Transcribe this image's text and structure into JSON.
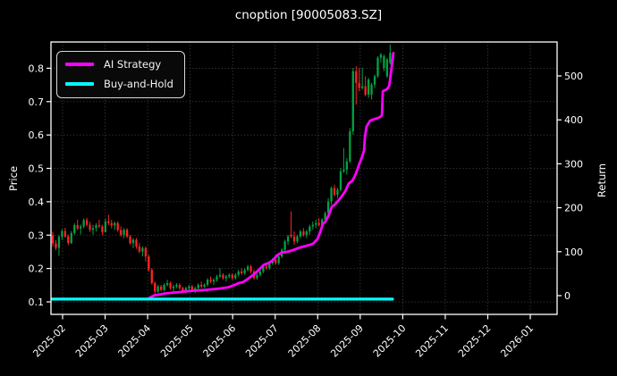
{
  "title": "cnoption [90005083.SZ]",
  "legend": {
    "items": [
      {
        "label": "AI Strategy",
        "color": "#ff00ff"
      },
      {
        "label": "Buy-and-Hold",
        "color": "#00ffff"
      }
    ]
  },
  "axes": {
    "left_label": "Price",
    "right_label": "Return"
  },
  "chart_data": {
    "type": "candlestick",
    "title": "cnoption [90005083.SZ]",
    "background": "#000000",
    "grid": true,
    "legend_position": "upper left",
    "x_axis": {
      "ticks": [
        "2025-02",
        "2025-03",
        "2025-04",
        "2025-05",
        "2025-06",
        "2025-07",
        "2025-08",
        "2025-09",
        "2025-10",
        "2025-11",
        "2025-12",
        "2026-01"
      ],
      "range_months": [
        -0.273,
        11.63
      ]
    },
    "price_axis": {
      "label": "Price",
      "ticks": [
        0.1,
        0.2,
        0.3,
        0.4,
        0.5,
        0.6,
        0.7,
        0.8
      ],
      "range": [
        0.062,
        0.878
      ]
    },
    "return_axis": {
      "label": "Return",
      "ticks": [
        0,
        100,
        200,
        300,
        400,
        500
      ],
      "range": [
        -43,
        577
      ]
    },
    "candles": {
      "up_color": "#00a244",
      "down_color": "#ff2222",
      "start_month": -0.231,
      "month_step": 0.0728,
      "ohlc": [
        [
          0.3,
          0.31,
          0.265,
          0.275
        ],
        [
          0.275,
          0.285,
          0.255,
          0.262
        ],
        [
          0.262,
          0.3,
          0.238,
          0.295
        ],
        [
          0.295,
          0.318,
          0.285,
          0.312
        ],
        [
          0.312,
          0.322,
          0.292,
          0.296
        ],
        [
          0.296,
          0.302,
          0.27,
          0.276
        ],
        [
          0.276,
          0.312,
          0.274,
          0.306
        ],
        [
          0.306,
          0.336,
          0.3,
          0.33
        ],
        [
          0.33,
          0.346,
          0.315,
          0.32
        ],
        [
          0.32,
          0.332,
          0.302,
          0.326
        ],
        [
          0.326,
          0.35,
          0.32,
          0.345
        ],
        [
          0.345,
          0.352,
          0.326,
          0.331
        ],
        [
          0.331,
          0.34,
          0.31,
          0.316
        ],
        [
          0.316,
          0.331,
          0.301,
          0.321
        ],
        [
          0.321,
          0.336,
          0.311,
          0.33
        ],
        [
          0.33,
          0.346,
          0.321,
          0.326
        ],
        [
          0.326,
          0.331,
          0.3,
          0.309
        ],
        [
          0.309,
          0.35,
          0.308,
          0.341
        ],
        [
          0.341,
          0.361,
          0.33,
          0.336
        ],
        [
          0.336,
          0.346,
          0.32,
          0.329
        ],
        [
          0.329,
          0.341,
          0.316,
          0.336
        ],
        [
          0.336,
          0.341,
          0.31,
          0.315
        ],
        [
          0.315,
          0.326,
          0.295,
          0.301
        ],
        [
          0.301,
          0.321,
          0.291,
          0.316
        ],
        [
          0.316,
          0.321,
          0.291,
          0.296
        ],
        [
          0.296,
          0.301,
          0.271,
          0.276
        ],
        [
          0.276,
          0.291,
          0.261,
          0.286
        ],
        [
          0.286,
          0.291,
          0.259,
          0.266
        ],
        [
          0.266,
          0.276,
          0.246,
          0.251
        ],
        [
          0.251,
          0.266,
          0.236,
          0.261
        ],
        [
          0.261,
          0.266,
          0.221,
          0.236
        ],
        [
          0.236,
          0.241,
          0.191,
          0.196
        ],
        [
          0.196,
          0.201,
          0.151,
          0.156
        ],
        [
          0.156,
          0.161,
          0.12,
          0.131
        ],
        [
          0.131,
          0.151,
          0.126,
          0.146
        ],
        [
          0.146,
          0.151,
          0.131,
          0.136
        ],
        [
          0.136,
          0.156,
          0.131,
          0.151
        ],
        [
          0.151,
          0.166,
          0.146,
          0.156
        ],
        [
          0.156,
          0.161,
          0.136,
          0.141
        ],
        [
          0.141,
          0.151,
          0.131,
          0.146
        ],
        [
          0.146,
          0.156,
          0.141,
          0.151
        ],
        [
          0.151,
          0.156,
          0.136,
          0.141
        ],
        [
          0.141,
          0.146,
          0.126,
          0.131
        ],
        [
          0.131,
          0.146,
          0.126,
          0.141
        ],
        [
          0.141,
          0.151,
          0.136,
          0.146
        ],
        [
          0.146,
          0.151,
          0.131,
          0.136
        ],
        [
          0.136,
          0.146,
          0.126,
          0.141
        ],
        [
          0.141,
          0.156,
          0.136,
          0.151
        ],
        [
          0.151,
          0.161,
          0.141,
          0.146
        ],
        [
          0.146,
          0.156,
          0.141,
          0.151
        ],
        [
          0.151,
          0.171,
          0.146,
          0.166
        ],
        [
          0.166,
          0.176,
          0.156,
          0.161
        ],
        [
          0.161,
          0.171,
          0.151,
          0.166
        ],
        [
          0.166,
          0.181,
          0.161,
          0.176
        ],
        [
          0.176,
          0.201,
          0.171,
          0.181
        ],
        [
          0.181,
          0.186,
          0.166,
          0.171
        ],
        [
          0.171,
          0.181,
          0.161,
          0.176
        ],
        [
          0.176,
          0.186,
          0.171,
          0.181
        ],
        [
          0.181,
          0.186,
          0.166,
          0.171
        ],
        [
          0.171,
          0.186,
          0.166,
          0.181
        ],
        [
          0.181,
          0.196,
          0.176,
          0.191
        ],
        [
          0.191,
          0.201,
          0.181,
          0.186
        ],
        [
          0.186,
          0.201,
          0.181,
          0.196
        ],
        [
          0.196,
          0.211,
          0.191,
          0.206
        ],
        [
          0.206,
          0.211,
          0.186,
          0.191
        ],
        [
          0.191,
          0.196,
          0.166,
          0.171
        ],
        [
          0.171,
          0.186,
          0.166,
          0.181
        ],
        [
          0.181,
          0.196,
          0.176,
          0.191
        ],
        [
          0.191,
          0.211,
          0.186,
          0.206
        ],
        [
          0.206,
          0.216,
          0.196,
          0.201
        ],
        [
          0.201,
          0.221,
          0.196,
          0.216
        ],
        [
          0.216,
          0.231,
          0.211,
          0.226
        ],
        [
          0.226,
          0.231,
          0.211,
          0.216
        ],
        [
          0.216,
          0.241,
          0.211,
          0.236
        ],
        [
          0.236,
          0.261,
          0.231,
          0.256
        ],
        [
          0.256,
          0.286,
          0.251,
          0.281
        ],
        [
          0.281,
          0.301,
          0.271,
          0.296
        ],
        [
          0.301,
          0.371,
          0.291,
          0.296
        ],
        [
          0.296,
          0.311,
          0.271,
          0.281
        ],
        [
          0.281,
          0.301,
          0.276,
          0.296
        ],
        [
          0.296,
          0.316,
          0.291,
          0.311
        ],
        [
          0.311,
          0.321,
          0.296,
          0.301
        ],
        [
          0.301,
          0.316,
          0.291,
          0.311
        ],
        [
          0.311,
          0.331,
          0.301,
          0.326
        ],
        [
          0.326,
          0.341,
          0.316,
          0.331
        ],
        [
          0.331,
          0.346,
          0.321,
          0.336
        ],
        [
          0.336,
          0.351,
          0.326,
          0.331
        ],
        [
          0.331,
          0.351,
          0.321,
          0.346
        ],
        [
          0.346,
          0.371,
          0.341,
          0.366
        ],
        [
          0.366,
          0.411,
          0.361,
          0.401
        ],
        [
          0.401,
          0.446,
          0.391,
          0.441
        ],
        [
          0.441,
          0.451,
          0.416,
          0.421
        ],
        [
          0.421,
          0.441,
          0.411,
          0.436
        ],
        [
          0.436,
          0.501,
          0.431,
          0.491
        ],
        [
          0.491,
          0.561,
          0.486,
          0.496
        ],
        [
          0.496,
          0.531,
          0.481,
          0.521
        ],
        [
          0.521,
          0.621,
          0.516,
          0.611
        ],
        [
          0.611,
          0.801,
          0.601,
          0.791
        ],
        [
          0.791,
          0.806,
          0.691,
          0.756
        ],
        [
          0.756,
          0.801,
          0.731,
          0.741
        ],
        [
          0.741,
          0.801,
          0.736,
          0.746
        ],
        [
          0.746,
          0.776,
          0.716,
          0.721
        ],
        [
          0.721,
          0.771,
          0.711,
          0.766
        ],
        [
          0.721,
          0.756,
          0.706,
          0.751
        ],
        [
          0.751,
          0.781,
          0.741,
          0.776
        ],
        [
          0.776,
          0.836,
          0.771,
          0.831
        ],
        [
          0.831,
          0.846,
          0.816,
          0.841
        ],
        [
          0.801,
          0.841,
          0.791,
          0.836
        ],
        [
          0.776,
          0.831,
          0.771,
          0.826
        ],
        [
          0.816,
          0.871,
          0.811,
          0.846
        ]
      ]
    },
    "series": [
      {
        "name": "AI Strategy",
        "color": "#ff00ff",
        "axis": "return",
        "line_width": 2.8,
        "points": [
          [
            -0.27,
            -8
          ],
          [
            2.0,
            -8
          ],
          [
            2.14,
            0
          ],
          [
            2.42,
            5
          ],
          [
            2.73,
            8
          ],
          [
            3.05,
            11
          ],
          [
            3.36,
            13
          ],
          [
            3.68,
            16
          ],
          [
            3.89,
            19
          ],
          [
            4.04,
            24
          ],
          [
            4.16,
            29
          ],
          [
            4.25,
            31
          ],
          [
            4.37,
            39
          ],
          [
            4.52,
            50
          ],
          [
            4.63,
            60
          ],
          [
            4.73,
            70
          ],
          [
            4.84,
            74
          ],
          [
            4.94,
            80
          ],
          [
            5.05,
            92
          ],
          [
            5.15,
            98
          ],
          [
            5.3,
            100
          ],
          [
            5.43,
            104
          ],
          [
            5.53,
            108
          ],
          [
            5.64,
            111
          ],
          [
            5.76,
            114
          ],
          [
            5.89,
            118
          ],
          [
            5.99,
            128
          ],
          [
            6.06,
            145
          ],
          [
            6.12,
            163
          ],
          [
            6.18,
            168
          ],
          [
            6.27,
            185
          ],
          [
            6.33,
            202
          ],
          [
            6.41,
            208
          ],
          [
            6.5,
            218
          ],
          [
            6.58,
            228
          ],
          [
            6.65,
            238
          ],
          [
            6.73,
            255
          ],
          [
            6.82,
            262
          ],
          [
            6.9,
            278
          ],
          [
            6.98,
            300
          ],
          [
            7.04,
            315
          ],
          [
            7.09,
            330
          ],
          [
            7.11,
            362
          ],
          [
            7.15,
            385
          ],
          [
            7.23,
            398
          ],
          [
            7.34,
            402
          ],
          [
            7.44,
            405
          ],
          [
            7.51,
            410
          ],
          [
            7.53,
            465
          ],
          [
            7.63,
            470
          ],
          [
            7.68,
            477
          ],
          [
            7.7,
            490
          ],
          [
            7.74,
            520
          ],
          [
            7.78,
            552
          ]
        ]
      },
      {
        "name": "Buy-and-Hold",
        "color": "#00ffff",
        "axis": "return",
        "line_width": 3.2,
        "points": [
          [
            -0.27,
            -8
          ],
          [
            7.76,
            -8
          ]
        ]
      }
    ]
  }
}
